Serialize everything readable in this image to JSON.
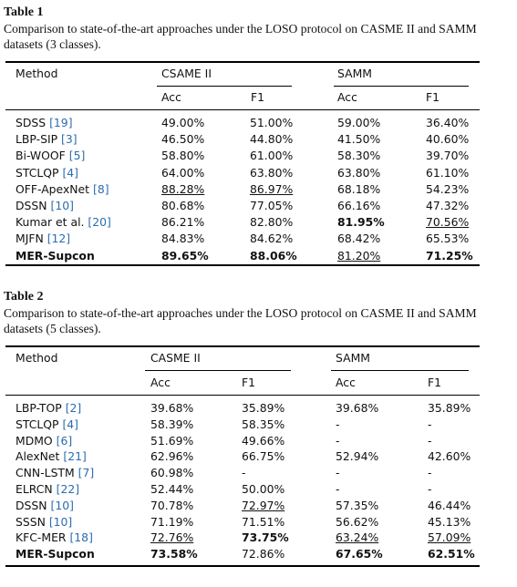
{
  "tables": [
    {
      "label": "Table 1",
      "caption": "Comparison to state-of-the-art approaches under the LOSO protocol on CASME II and SAMM datasets (3 classes).",
      "columns": {
        "method": "Method",
        "group1": "CSAME II",
        "group2": "SAMM",
        "acc": "Acc",
        "f1": "F1"
      },
      "rows": [
        {
          "name": "SDSS",
          "cite": "[19]",
          "v": [
            "49.00%",
            "51.00%",
            "59.00%",
            "36.40%"
          ]
        },
        {
          "name": "LBP-SIP",
          "cite": "[3]",
          "v": [
            "46.50%",
            "44.80%",
            "41.50%",
            "40.60%"
          ]
        },
        {
          "name": "Bi-WOOF",
          "cite": "[5]",
          "v": [
            "58.80%",
            "61.00%",
            "58.30%",
            "39.70%"
          ]
        },
        {
          "name": "STCLQP",
          "cite": "[4]",
          "v": [
            "64.00%",
            "63.80%",
            "63.80%",
            "61.10%"
          ]
        },
        {
          "name": "OFF-ApexNet",
          "cite": "[8]",
          "v": [
            "88.28%",
            "86.97%",
            "68.18%",
            "54.23%"
          ],
          "u": [
            0,
            1
          ]
        },
        {
          "name": "DSSN",
          "cite": "[10]",
          "v": [
            "80.68%",
            "77.05%",
            "66.16%",
            "47.32%"
          ]
        },
        {
          "name": "Kumar et al.",
          "cite": "[20]",
          "v": [
            "86.21%",
            "82.80%",
            "81.95%",
            "70.56%"
          ],
          "b": [
            2
          ],
          "u": [
            3
          ]
        },
        {
          "name": "MJFN",
          "cite": "[12]",
          "v": [
            "84.83%",
            "84.62%",
            "68.42%",
            "65.53%"
          ]
        },
        {
          "name": "MER-Supcon",
          "cite": "",
          "v": [
            "89.65%",
            "88.06%",
            "81.20%",
            "71.25%"
          ],
          "bold_name": true,
          "b": [
            0,
            1,
            3
          ],
          "u": [
            2
          ]
        }
      ]
    },
    {
      "label": "Table 2",
      "caption": "Comparison to state-of-the-art approaches under the LOSO protocol on CASME II and SAMM datasets (5 classes).",
      "columns": {
        "method": "Method",
        "group1": "CASME II",
        "group2": "SAMM",
        "acc": "Acc",
        "f1": "F1"
      },
      "rows": [
        {
          "name": "LBP-TOP",
          "cite": "[2]",
          "v": [
            "39.68%",
            "35.89%",
            "39.68%",
            "35.89%"
          ]
        },
        {
          "name": "STCLQP",
          "cite": "[4]",
          "v": [
            "58.39%",
            "58.35%",
            "-",
            "-"
          ]
        },
        {
          "name": "MDMO",
          "cite": "[6]",
          "v": [
            "51.69%",
            "49.66%",
            "-",
            "-"
          ]
        },
        {
          "name": "AlexNet",
          "cite": "[21]",
          "v": [
            "62.96%",
            "66.75%",
            "52.94%",
            "42.60%"
          ]
        },
        {
          "name": "CNN-LSTM",
          "cite": "[7]",
          "v": [
            "60.98%",
            "-",
            "-",
            "-"
          ]
        },
        {
          "name": "ELRCN",
          "cite": "[22]",
          "v": [
            "52.44%",
            "50.00%",
            "-",
            "-"
          ]
        },
        {
          "name": "DSSN",
          "cite": "[10]",
          "v": [
            "70.78%",
            "72.97%",
            "57.35%",
            "46.44%"
          ],
          "u": [
            1
          ]
        },
        {
          "name": "SSSN",
          "cite": "[10]",
          "v": [
            "71.19%",
            "71.51%",
            "56.62%",
            "45.13%"
          ]
        },
        {
          "name": "KFC-MER",
          "cite": "[18]",
          "v": [
            "72.76%",
            "73.75%",
            "63.24%",
            "57.09%"
          ],
          "b": [
            1
          ],
          "u": [
            0,
            2,
            3
          ]
        },
        {
          "name": "MER-Supcon",
          "cite": "",
          "v": [
            "73.58%",
            "72.86%",
            "67.65%",
            "62.51%"
          ],
          "bold_name": true,
          "b": [
            0,
            2,
            3
          ]
        }
      ]
    }
  ]
}
